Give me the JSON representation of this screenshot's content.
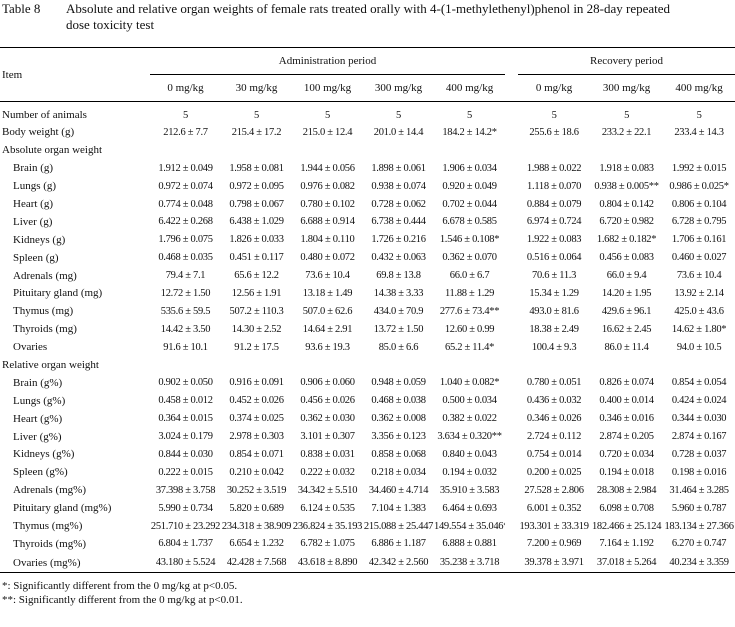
{
  "header": {
    "label": "Table 8",
    "caption": "Absolute and relative organ weights of female rats treated orally with 4-(1-methylethenyl)phenol in 28-day repeated dose toxicity test"
  },
  "table": {
    "item_header": "Item",
    "groups": [
      "Administration period",
      "Recovery period"
    ],
    "doses": [
      "0 mg/kg",
      "30 mg/kg",
      "100 mg/kg",
      "300 mg/kg",
      "400 mg/kg",
      "0 mg/kg",
      "300 mg/kg",
      "400 mg/kg"
    ],
    "rows": [
      {
        "label": "Number of animals",
        "values": [
          "5",
          "5",
          "5",
          "5",
          "5",
          "5",
          "5",
          "5"
        ]
      },
      {
        "label": "Body weight (g)",
        "values": [
          "212.6 ± 7.7",
          "215.4 ± 17.2",
          "215.0 ± 12.4",
          "201.0 ± 14.4",
          "184.2 ± 14.2*",
          "255.6 ± 18.6",
          "233.2 ± 22.1",
          "233.4 ± 14.3"
        ]
      },
      {
        "label": "Absolute organ weight"
      },
      {
        "label": "Brain (g)",
        "values": [
          "1.912 ± 0.049",
          "1.958 ± 0.081",
          "1.944 ± 0.056",
          "1.898 ± 0.061",
          "1.906 ± 0.034",
          "1.988 ± 0.022",
          "1.918 ± 0.083",
          "1.992 ± 0.015"
        ]
      },
      {
        "label": "Lungs (g)",
        "values": [
          "0.972 ± 0.074",
          "0.972 ± 0.095",
          "0.976 ± 0.082",
          "0.938 ± 0.074",
          "0.920 ± 0.049",
          "1.118 ± 0.070",
          "0.938 ± 0.005**",
          "0.986 ± 0.025*"
        ]
      },
      {
        "label": "Heart (g)",
        "values": [
          "0.774 ± 0.048",
          "0.798 ± 0.067",
          "0.780 ± 0.102",
          "0.728 ± 0.062",
          "0.702 ± 0.044",
          "0.884 ± 0.079",
          "0.804 ± 0.142",
          "0.806 ± 0.104"
        ]
      },
      {
        "label": "Liver (g)",
        "values": [
          "6.422 ± 0.268",
          "6.438 ± 1.029",
          "6.688 ± 0.914",
          "6.738 ± 0.444",
          "6.678 ± 0.585",
          "6.974 ± 0.724",
          "6.720 ± 0.982",
          "6.728 ± 0.795"
        ]
      },
      {
        "label": "Kidneys (g)",
        "values": [
          "1.796 ± 0.075",
          "1.826 ± 0.033",
          "1.804 ± 0.110",
          "1.726 ± 0.216",
          "1.546 ± 0.108*",
          "1.922 ± 0.083",
          "1.682 ± 0.182*",
          "1.706 ± 0.161"
        ]
      },
      {
        "label": "Spleen (g)",
        "values": [
          "0.468 ± 0.035",
          "0.451 ± 0.117",
          "0.480 ± 0.072",
          "0.432 ± 0.063",
          "0.362 ± 0.070",
          "0.516 ± 0.064",
          "0.456 ± 0.083",
          "0.460 ± 0.027"
        ]
      },
      {
        "label": "Adrenals (mg)",
        "values": [
          "79.4 ± 7.1",
          "65.6 ± 12.2",
          "73.6 ± 10.4",
          "69.8 ± 13.8",
          "66.0 ± 6.7",
          "70.6 ± 11.3",
          "66.0 ± 9.4",
          "73.6 ± 10.4"
        ]
      },
      {
        "label": "Pituitary gland (mg)",
        "values": [
          "12.72 ± 1.50",
          "12.56 ± 1.91",
          "13.18 ± 1.49",
          "14.38 ± 3.33",
          "11.88 ± 1.29",
          "15.34 ± 1.29",
          "14.20 ± 1.95",
          "13.92 ± 2.14"
        ]
      },
      {
        "label": "Thymus (mg)",
        "values": [
          "535.6 ± 59.5",
          "507.2 ± 110.3",
          "507.0 ± 62.6",
          "434.0 ± 70.9",
          "277.6 ± 73.4**",
          "493.0 ± 81.6",
          "429.6 ± 96.1",
          "425.0 ± 43.6"
        ]
      },
      {
        "label": "Thyroids (mg)",
        "values": [
          "14.42 ± 3.50",
          "14.30 ± 2.52",
          "14.64 ± 2.91",
          "13.72 ± 1.50",
          "12.60 ± 0.99",
          "18.38 ± 2.49",
          "16.62 ± 2.45",
          "14.62 ± 1.80*"
        ]
      },
      {
        "label": "Ovaries",
        "values": [
          "91.6 ± 10.1",
          "91.2 ± 17.5",
          "93.6 ± 19.3",
          "85.0 ± 6.6",
          "65.2 ± 11.4*",
          "100.4 ± 9.3",
          "86.0 ± 11.4",
          "94.0 ± 10.5"
        ]
      },
      {
        "label": "Relative organ weight"
      },
      {
        "label": "Brain (g%)",
        "values": [
          "0.902 ± 0.050",
          "0.916 ± 0.091",
          "0.906 ± 0.060",
          "0.948 ± 0.059",
          "1.040 ± 0.082*",
          "0.780 ± 0.051",
          "0.826 ± 0.074",
          "0.854 ± 0.054"
        ]
      },
      {
        "label": "Lungs (g%)",
        "values": [
          "0.458 ± 0.012",
          "0.452 ± 0.026",
          "0.456 ± 0.026",
          "0.468 ± 0.038",
          "0.500 ± 0.034",
          "0.436 ± 0.032",
          "0.400 ± 0.014",
          "0.424 ± 0.024"
        ]
      },
      {
        "label": "Heart (g%)",
        "values": [
          "0.364 ± 0.015",
          "0.374 ± 0.025",
          "0.362 ± 0.030",
          "0.362 ± 0.008",
          "0.382 ± 0.022",
          "0.346 ± 0.026",
          "0.346 ± 0.016",
          "0.344 ± 0.030"
        ]
      },
      {
        "label": "Liver (g%)",
        "values": [
          "3.024 ± 0.179",
          "2.978 ± 0.303",
          "3.101 ± 0.307",
          "3.356 ± 0.123",
          "3.634 ± 0.320**",
          "2.724 ± 0.112",
          "2.874 ± 0.205",
          "2.874 ± 0.167"
        ]
      },
      {
        "label": "Kidneys (g%)",
        "values": [
          "0.844 ± 0.030",
          "0.854 ± 0.071",
          "0.838 ± 0.031",
          "0.858 ± 0.068",
          "0.840 ± 0.043",
          "0.754 ± 0.014",
          "0.720 ± 0.034",
          "0.728 ± 0.037"
        ]
      },
      {
        "label": "Spleen (g%)",
        "values": [
          "0.222 ± 0.015",
          "0.210 ± 0.042",
          "0.222 ± 0.032",
          "0.218 ± 0.034",
          "0.194 ± 0.032",
          "0.200 ± 0.025",
          "0.194 ± 0.018",
          "0.198 ± 0.016"
        ]
      },
      {
        "label": "Adrenals (mg%)",
        "values": [
          "37.398 ± 3.758",
          "30.252 ± 3.519",
          "34.342 ± 5.510",
          "34.460 ± 4.714",
          "35.910 ± 3.583",
          "27.528 ± 2.806",
          "28.308 ± 2.984",
          "31.464 ± 3.285"
        ]
      },
      {
        "label": "Pituitary gland (mg%)",
        "values": [
          "5.990 ± 0.734",
          "5.820 ± 0.689",
          "6.124 ± 0.535",
          "7.104 ± 1.383",
          "6.464 ± 0.693",
          "6.001 ± 0.352",
          "6.098 ± 0.708",
          "5.960 ± 0.787"
        ]
      },
      {
        "label": "Thymus (mg%)",
        "values": [
          "251.710 ± 23.292",
          "234.318 ± 38.909",
          "236.824 ± 35.193",
          "215.088 ± 25.447",
          "149.554 ± 35.046**",
          "193.301 ± 33.319",
          "182.466 ± 25.124",
          "183.134 ± 27.366"
        ]
      },
      {
        "label": "Thyroids (mg%)",
        "values": [
          "6.804 ± 1.737",
          "6.654 ± 1.232",
          "6.782 ± 1.075",
          "6.886 ± 1.187",
          "6.888 ± 0.881",
          "7.200 ± 0.969",
          "7.164 ± 1.192",
          "6.270 ± 0.747"
        ]
      },
      {
        "label": "Ovaries (mg%)",
        "values": [
          "43.180 ± 5.524",
          "42.428 ± 7.568",
          "43.618 ± 8.890",
          "42.342 ± 2.560",
          "35.238 ± 3.718",
          "39.378 ± 3.971",
          "37.018 ± 5.264",
          "40.234 ± 3.359"
        ]
      }
    ]
  },
  "footnotes": [
    "*: Significantly different from the 0 mg/kg at p<0.05.",
    "**: Significantly different from the 0 mg/kg at p<0.01."
  ]
}
